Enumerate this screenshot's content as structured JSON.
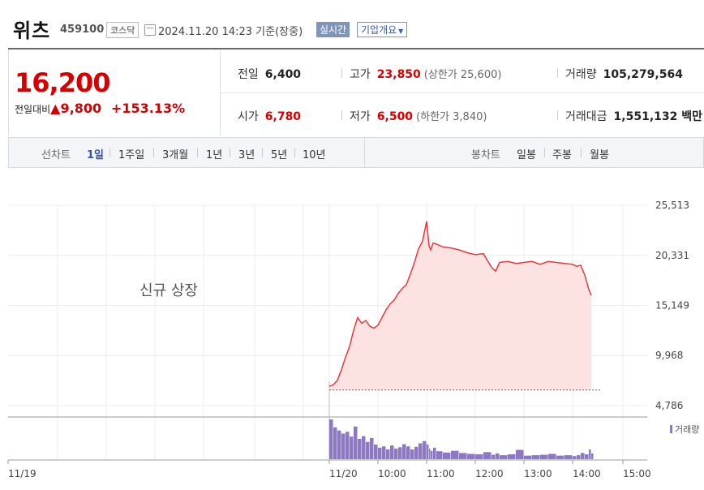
{
  "header": {
    "name": "위츠",
    "code": "459100",
    "market": "코스닥",
    "datetime": "2024.11.20 14:23 기준(장중)",
    "realtime_label": "실시간",
    "company_label": "기업개요"
  },
  "quote": {
    "price": "16,200",
    "change_label": "전일대비",
    "change_value": "9,800",
    "change_rate": "+153.13%",
    "prev_close_label": "전일",
    "prev_close": "6,400",
    "open_label": "시가",
    "open": "6,780",
    "high_label": "고가",
    "high": "23,850",
    "upper_limit": "(상한가 25,600)",
    "low_label": "저가",
    "low": "6,500",
    "lower_limit": "(하한가 3,840)",
    "volume_label": "거래량",
    "volume": "105,279,564",
    "amount_label": "거래대금",
    "amount": "1,551,132 백만"
  },
  "tabs": {
    "line_chart_label": "선차트",
    "periods": [
      "1일",
      "1주일",
      "3개월",
      "1년",
      "3년",
      "5년",
      "10년"
    ],
    "candle_label": "봉차트",
    "candles": [
      "일봉",
      "주봉",
      "월봉"
    ]
  },
  "colors": {
    "up": "#d60000",
    "line": "#e8393c",
    "area": "#fde2e2",
    "volume": "#8d78c2",
    "tab_active": "#2b55b0"
  },
  "chart_data": {
    "type": "area",
    "annotation": "신규 상장",
    "y_ticks": [
      "25,513",
      "20,331",
      "15,149",
      "9,968",
      "4,786"
    ],
    "ylim": [
      4786,
      25513
    ],
    "x_ticks": [
      "11/19",
      "11/20",
      "10:00",
      "11:00",
      "12:00",
      "13:00",
      "14:00",
      "15:00"
    ],
    "baseline": 6400,
    "volume_label": "거래량",
    "series": [
      {
        "x": [
          "09:00",
          "09:05",
          "09:10",
          "09:15",
          "09:20",
          "09:25",
          "09:30",
          "09:35",
          "09:40",
          "09:45",
          "09:50",
          "09:55",
          "10:00",
          "10:05",
          "10:10",
          "10:15",
          "10:20",
          "10:25",
          "10:30",
          "10:35",
          "10:40",
          "10:45",
          "10:50",
          "10:55",
          "11:00",
          "11:03",
          "11:05",
          "11:08",
          "11:12",
          "11:20",
          "11:30",
          "11:40",
          "11:50",
          "12:00",
          "12:10",
          "12:20",
          "12:25",
          "12:30",
          "12:40",
          "12:50",
          "13:00",
          "13:10",
          "13:20",
          "13:30",
          "13:40",
          "13:50",
          "14:00",
          "14:05",
          "14:10",
          "14:15",
          "14:20",
          "14:23"
        ],
        "values": [
          6780,
          6950,
          7400,
          8500,
          9800,
          10900,
          12600,
          13900,
          13300,
          13600,
          13000,
          12800,
          13100,
          13900,
          14700,
          15300,
          15700,
          16400,
          16900,
          17300,
          18400,
          19600,
          21000,
          21800,
          23850,
          21300,
          20900,
          21600,
          21500,
          21200,
          21100,
          20900,
          20600,
          20400,
          20500,
          19100,
          18700,
          19600,
          19700,
          19500,
          19600,
          19700,
          19400,
          19700,
          19600,
          19500,
          19400,
          19200,
          19300,
          18300,
          16800,
          16200
        ]
      }
    ],
    "volume": [
      9.0,
      7.2,
      6.5,
      5.8,
      6.2,
      5.1,
      7.4,
      4.6,
      5.2,
      3.9,
      4.8,
      3.3,
      2.6,
      2.9,
      2.2,
      3.1,
      2.4,
      2.7,
      3.4,
      2.9,
      2.2,
      2.8,
      3.6,
      4.1,
      3.3,
      2.4,
      1.9,
      2.6,
      1.8,
      1.5,
      1.9,
      1.4,
      1.2,
      1.1,
      1.6,
      1.0,
      1.3,
      0.9,
      1.1,
      2.1,
      0.8,
      0.9,
      1.0,
      1.2,
      0.8,
      0.9,
      0.7,
      0.9,
      1.4,
      1.1,
      2.2,
      1.3
    ]
  }
}
